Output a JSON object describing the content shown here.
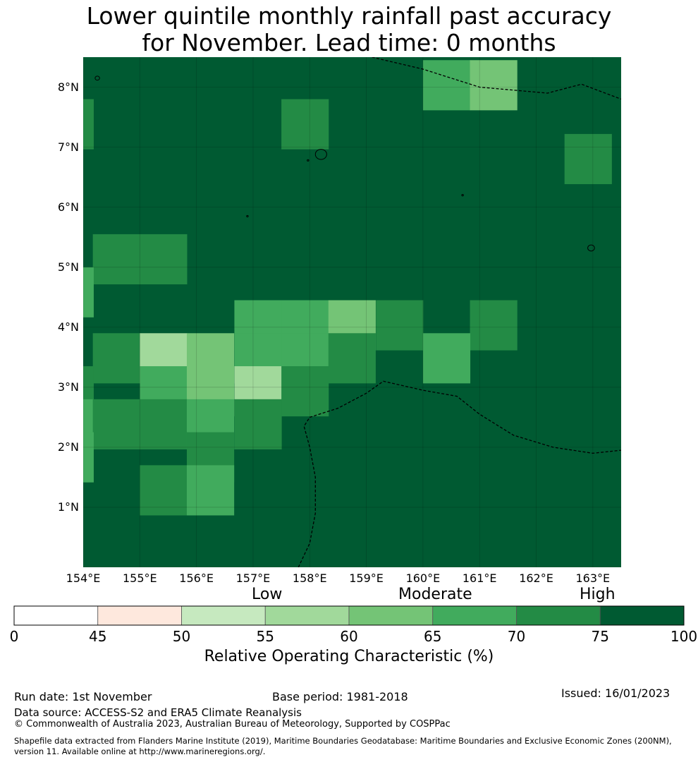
{
  "title_line1": "Lower quintile monthly rainfall past accuracy",
  "title_line2": "for November. Lead time: 0 months",
  "map": {
    "lon_range": [
      154,
      163.5
    ],
    "lat_range": [
      0,
      8.5
    ],
    "cell_size_deg": 0.83,
    "lat_labels": [
      "8°N",
      "7°N",
      "6°N",
      "5°N",
      "4°N",
      "3°N",
      "2°N",
      "1°N"
    ],
    "lat_values": [
      8,
      7,
      6,
      5,
      4,
      3,
      2,
      1
    ],
    "lon_labels": [
      "154°E",
      "155°E",
      "156°E",
      "157°E",
      "158°E",
      "159°E",
      "160°E",
      "161°E",
      "162°E",
      "163°E"
    ],
    "lon_values": [
      154,
      155,
      156,
      157,
      158,
      159,
      160,
      161,
      162,
      163
    ],
    "background_class": 8,
    "cells": [
      {
        "lon": 153.35,
        "lat": 7.8,
        "cls": 7
      },
      {
        "lon": 157.5,
        "lat": 7.8,
        "cls": 7
      },
      {
        "lon": 162.5,
        "lat": 7.22,
        "cls": 7
      },
      {
        "lon": 160.0,
        "lat": 8.45,
        "cls": 6
      },
      {
        "lon": 160.83,
        "lat": 8.45,
        "cls": 5
      },
      {
        "lon": 154.17,
        "lat": 5.55,
        "cls": 7
      },
      {
        "lon": 155.0,
        "lat": 5.55,
        "cls": 7
      },
      {
        "lon": 153.35,
        "lat": 5.0,
        "cls": 6
      },
      {
        "lon": 156.67,
        "lat": 4.45,
        "cls": 6
      },
      {
        "lon": 157.5,
        "lat": 4.45,
        "cls": 6
      },
      {
        "lon": 158.33,
        "lat": 4.45,
        "cls": 5
      },
      {
        "lon": 159.17,
        "lat": 4.45,
        "cls": 7
      },
      {
        "lon": 160.83,
        "lat": 4.45,
        "cls": 7
      },
      {
        "lon": 154.17,
        "lat": 3.9,
        "cls": 7
      },
      {
        "lon": 155.0,
        "lat": 3.9,
        "cls": 4
      },
      {
        "lon": 155.83,
        "lat": 3.9,
        "cls": 5
      },
      {
        "lon": 156.67,
        "lat": 3.9,
        "cls": 6
      },
      {
        "lon": 157.5,
        "lat": 3.9,
        "cls": 6
      },
      {
        "lon": 158.33,
        "lat": 3.9,
        "cls": 7
      },
      {
        "lon": 160.0,
        "lat": 3.9,
        "cls": 6
      },
      {
        "lon": 153.35,
        "lat": 3.35,
        "cls": 7
      },
      {
        "lon": 155.0,
        "lat": 3.35,
        "cls": 6
      },
      {
        "lon": 155.83,
        "lat": 3.35,
        "cls": 5
      },
      {
        "lon": 156.67,
        "lat": 3.35,
        "cls": 4
      },
      {
        "lon": 157.5,
        "lat": 3.35,
        "cls": 7
      },
      {
        "lon": 153.35,
        "lat": 2.8,
        "cls": 6
      },
      {
        "lon": 154.17,
        "lat": 2.8,
        "cls": 7
      },
      {
        "lon": 155.0,
        "lat": 2.8,
        "cls": 7
      },
      {
        "lon": 155.83,
        "lat": 2.8,
        "cls": 6
      },
      {
        "lon": 156.67,
        "lat": 2.8,
        "cls": 7
      },
      {
        "lon": 153.35,
        "lat": 2.25,
        "cls": 6
      },
      {
        "lon": 155.83,
        "lat": 2.25,
        "cls": 7
      },
      {
        "lon": 155.0,
        "lat": 1.7,
        "cls": 7
      },
      {
        "lon": 155.83,
        "lat": 1.7,
        "cls": 6
      }
    ],
    "eez_lines": [
      [
        [
          159.1,
          8.5
        ],
        [
          160.0,
          8.3
        ],
        [
          161.0,
          8.0
        ],
        [
          162.2,
          7.9
        ],
        [
          162.8,
          8.05
        ],
        [
          163.5,
          7.8
        ]
      ],
      [
        [
          157.8,
          0.0
        ],
        [
          158.0,
          0.4
        ],
        [
          158.1,
          0.9
        ],
        [
          158.1,
          1.5
        ],
        [
          158.0,
          2.0
        ],
        [
          157.9,
          2.35
        ],
        [
          158.0,
          2.5
        ],
        [
          158.5,
          2.65
        ],
        [
          159.0,
          2.9
        ],
        [
          159.3,
          3.1
        ],
        [
          160.0,
          2.95
        ],
        [
          160.6,
          2.85
        ],
        [
          161.0,
          2.55
        ],
        [
          161.6,
          2.2
        ],
        [
          162.3,
          2.0
        ],
        [
          163.0,
          1.9
        ],
        [
          163.5,
          1.95
        ]
      ]
    ],
    "islands": [
      {
        "lon": 158.2,
        "lat": 6.88,
        "r": 0.1
      },
      {
        "lon": 162.97,
        "lat": 5.32,
        "r": 0.06
      },
      {
        "lon": 154.25,
        "lat": 8.15,
        "r": 0.04
      },
      {
        "lon": 157.97,
        "lat": 6.78,
        "r": 0.015
      },
      {
        "lon": 160.7,
        "lat": 6.2,
        "r": 0.012
      },
      {
        "lon": 156.9,
        "lat": 5.85,
        "r": 0.01
      }
    ]
  },
  "colorbar": {
    "category_labels": [
      "Low",
      "Moderate",
      "High"
    ],
    "ticks": [
      "0",
      "45",
      "50",
      "55",
      "60",
      "65",
      "70",
      "75",
      "100"
    ],
    "colors": [
      "#ffffff",
      "#fee8dd",
      "#c6e9bf",
      "#a1d99b",
      "#74c476",
      "#41ab5d",
      "#238b45",
      "#005a32"
    ],
    "title": "Relative Operating Characteristic (%)"
  },
  "footer": {
    "run_date": "Run date: 1st November",
    "base_period": "Base period: 1981-2018",
    "issued": "Issued: 16/01/2023",
    "data_source": "Data source: ACCESS-S2 and ERA5 Climate Reanalysis",
    "copyright": "© Commonwealth of Australia 2023, Australian Bureau of Meteorology, Supported by COSPPac",
    "shapefile": "Shapefile data extracted from Flanders Marine Institute (2019), Maritime Boundaries Geodatabase: Maritime Boundaries and Exclusive Economic Zones (200NM), version 11. Available online at http://www.marineregions.org/."
  }
}
